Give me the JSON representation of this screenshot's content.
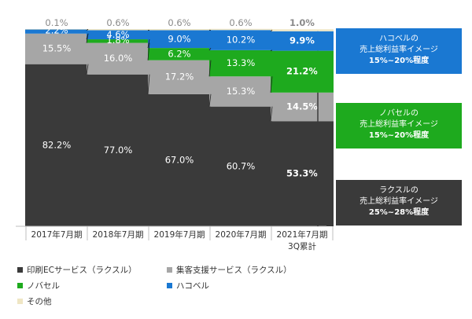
{
  "chart_data": {
    "type": "bar",
    "stacked": true,
    "normalized": true,
    "categories": [
      "2017年7月期",
      "2018年7月期",
      "2019年7月期",
      "2020年7月期",
      "2021年7月期\n3Q累計"
    ],
    "series": [
      {
        "name": "印刷ECサービス（ラクスル）",
        "color": "#3a3a3a",
        "values": [
          82.2,
          77.0,
          67.0,
          60.7,
          53.3
        ],
        "labels": [
          "82.2%",
          "77.0%",
          "67.0%",
          "60.7%",
          "53.3%"
        ]
      },
      {
        "name": "集客支援サービス（ラクスル）",
        "color": "#a6a6a6",
        "values": [
          15.5,
          16.0,
          17.2,
          15.3,
          14.5
        ],
        "labels": [
          "15.5%",
          "16.0%",
          "17.2%",
          "15.3%",
          "14.5%"
        ]
      },
      {
        "name": "ノバセル",
        "color": "#1eaa1e",
        "values": [
          0.0,
          1.8,
          6.2,
          13.3,
          21.2
        ],
        "labels": [
          "",
          "1.8%",
          "6.2%",
          "13.3%",
          "21.2%"
        ]
      },
      {
        "name": "ハコベル",
        "color": "#1a78d2",
        "values": [
          2.2,
          4.6,
          9.0,
          10.2,
          9.9
        ],
        "labels": [
          "2.2%",
          "4.6%",
          "9.0%",
          "10.2%",
          "9.9%"
        ]
      },
      {
        "name": "その他",
        "color": "#efe6c4",
        "values": [
          0.1,
          0.6,
          0.6,
          0.6,
          1.0
        ],
        "labels": [
          "0.1%",
          "0.6%",
          "0.6%",
          "0.6%",
          "1.0%"
        ]
      }
    ],
    "ylim": [
      0,
      100
    ],
    "legend": "bottom-left",
    "callouts": [
      {
        "color": "#1a78d2",
        "lines": [
          "ハコベルの",
          "売上総利益率イメージ",
          "15%~20%程度"
        ]
      },
      {
        "color": "#1eaa1e",
        "lines": [
          "ノバセルの",
          "売上総利益率イメージ",
          "15%~20%程度"
        ]
      },
      {
        "color": "#3a3a3a",
        "lines": [
          "ラクスルの",
          "売上総利益率イメージ",
          "25%~28%程度"
        ]
      }
    ]
  }
}
